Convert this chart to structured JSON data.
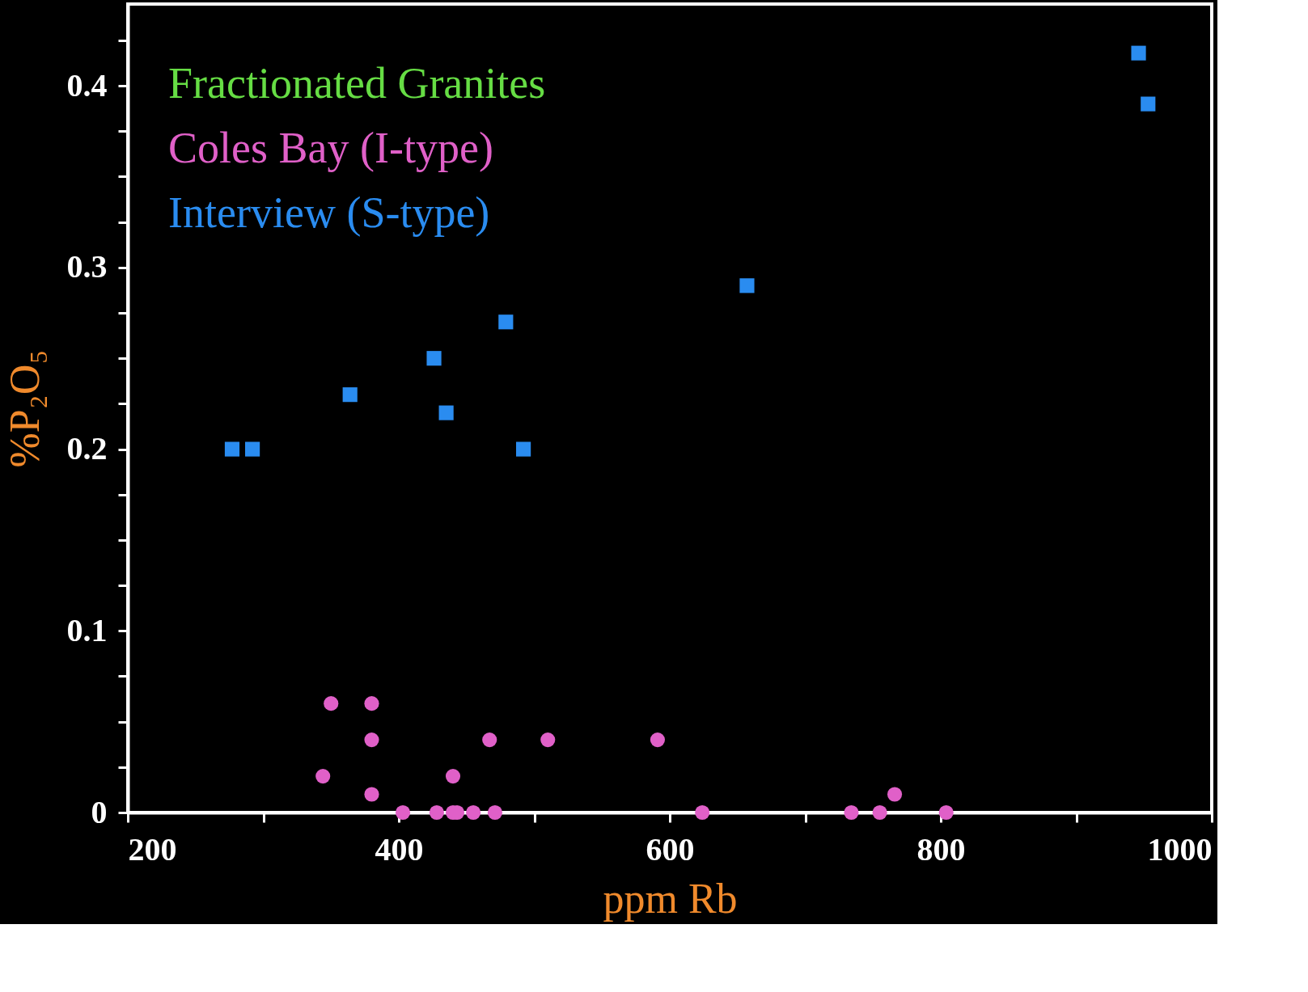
{
  "chart_data": {
    "type": "scatter",
    "xlabel": "ppm Rb",
    "ylabel": "%P₂O₅",
    "xlim": [
      200,
      1000
    ],
    "ylim": [
      0,
      0.445
    ],
    "xticks": [
      200,
      {
        "value": 300,
        "label": null
      },
      400,
      {
        "value": 500,
        "label": null
      },
      600,
      {
        "value": 700,
        "label": null
      },
      800,
      {
        "value": 900,
        "label": null
      },
      1000
    ],
    "yticks": [
      0,
      {
        "value": 0.025,
        "label": null
      },
      {
        "value": 0.05,
        "label": null
      },
      {
        "value": 0.075,
        "label": null
      },
      0.1,
      {
        "value": 0.125,
        "label": null
      },
      {
        "value": 0.15,
        "label": null
      },
      {
        "value": 0.175,
        "label": null
      },
      0.2,
      {
        "value": 0.225,
        "label": null
      },
      {
        "value": 0.25,
        "label": null
      },
      {
        "value": 0.275,
        "label": null
      },
      0.3,
      {
        "value": 0.325,
        "label": null
      },
      {
        "value": 0.35,
        "label": null
      },
      {
        "value": 0.375,
        "label": null
      },
      0.4,
      {
        "value": 0.425,
        "label": null
      }
    ],
    "grid": false,
    "legend": "top left",
    "series": [
      {
        "name": "Fractionated Granites",
        "color": "#66dd44"
      },
      {
        "name": "Coles Bay (I-type)",
        "color": "#e060c8",
        "marker": "circle",
        "x": [
          350,
          380,
          380,
          344,
          380,
          403,
          428,
          440,
          440,
          443,
          455,
          467,
          471,
          510,
          591,
          624,
          734,
          755,
          766,
          804
        ],
        "values": [
          0.06,
          0.06,
          0.04,
          0.02,
          0.01,
          0,
          0,
          0.02,
          0,
          0,
          0,
          0.04,
          0,
          0.04,
          0.04,
          0,
          0,
          0,
          0.01,
          0
        ]
      },
      {
        "name": "Interview (S-type)",
        "color": "#2a8cf0",
        "marker": "square",
        "x": [
          277,
          292,
          364,
          426,
          435,
          479,
          492,
          657,
          946,
          953
        ],
        "values": [
          0.2,
          0.2,
          0.23,
          0.25,
          0.22,
          0.27,
          0.2,
          0.29,
          0.418,
          0.39
        ]
      }
    ]
  }
}
